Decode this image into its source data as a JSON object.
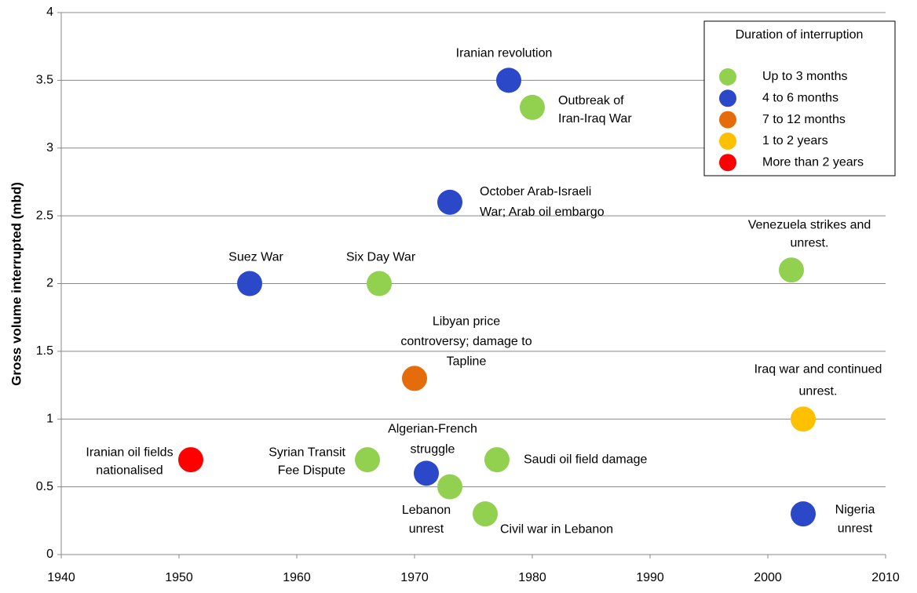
{
  "chart_data": {
    "type": "scatter",
    "ylabel": "Gross volume interrupted (mbd)",
    "xlim": [
      1940,
      2010
    ],
    "xticks": [
      1940,
      1950,
      1960,
      1970,
      1980,
      1990,
      2000,
      2010
    ],
    "ylim": [
      0,
      4
    ],
    "yticks": [
      0,
      0.5,
      1,
      1.5,
      2,
      2.5,
      3,
      3.5,
      4
    ],
    "grid": true,
    "legend": {
      "title": "Duration of interruption",
      "position": "upper right"
    },
    "series": [
      {
        "name": "Up to 3 months",
        "color": "#92d050",
        "x": [
          1966,
          1967,
          1973,
          1976,
          1977,
          1980,
          2002
        ],
        "values": [
          0.7,
          2,
          0.5,
          0.3,
          0.7,
          3.3,
          2.1
        ],
        "labels": [
          [
            "Syrian Transit",
            "Fee Dispute"
          ],
          [
            "Six Day War"
          ],
          [
            "Lebanon",
            "unrest"
          ],
          [
            "Civil war in Lebanon"
          ],
          [
            "Saudi oil field damage"
          ],
          [
            "Outbreak of",
            "Iran-Iraq War"
          ],
          [
            "Venezuela strikes and",
            "unrest."
          ]
        ]
      },
      {
        "name": "4 to 6 months",
        "color": "#2a48c8",
        "x": [
          1956,
          1971,
          1973,
          1978,
          2003
        ],
        "values": [
          2,
          0.6,
          2.6,
          3.5,
          0.3
        ],
        "labels": [
          [
            "Suez War"
          ],
          [
            "Algerian-French",
            "struggle"
          ],
          [
            "October Arab-Israeli",
            "War; Arab oil embargo"
          ],
          [
            "Iranian revolution"
          ],
          [
            "Nigeria",
            "unrest"
          ]
        ]
      },
      {
        "name": "7 to 12 months",
        "color": "#e46c0a",
        "x": [
          1970
        ],
        "values": [
          1.3
        ],
        "labels": [
          [
            "Libyan price",
            "controversy; damage to",
            "Tapline"
          ]
        ]
      },
      {
        "name": "1 to 2 years",
        "color": "#ffc000",
        "x": [
          2003
        ],
        "values": [
          1
        ],
        "labels": [
          [
            "Iraq war and continued",
            "unrest."
          ]
        ]
      },
      {
        "name": "More than 2 years",
        "color": "#ff0000",
        "x": [
          1951
        ],
        "values": [
          0.7
        ],
        "labels": [
          [
            "Iranian oil fields",
            "nationalised"
          ]
        ]
      }
    ]
  }
}
